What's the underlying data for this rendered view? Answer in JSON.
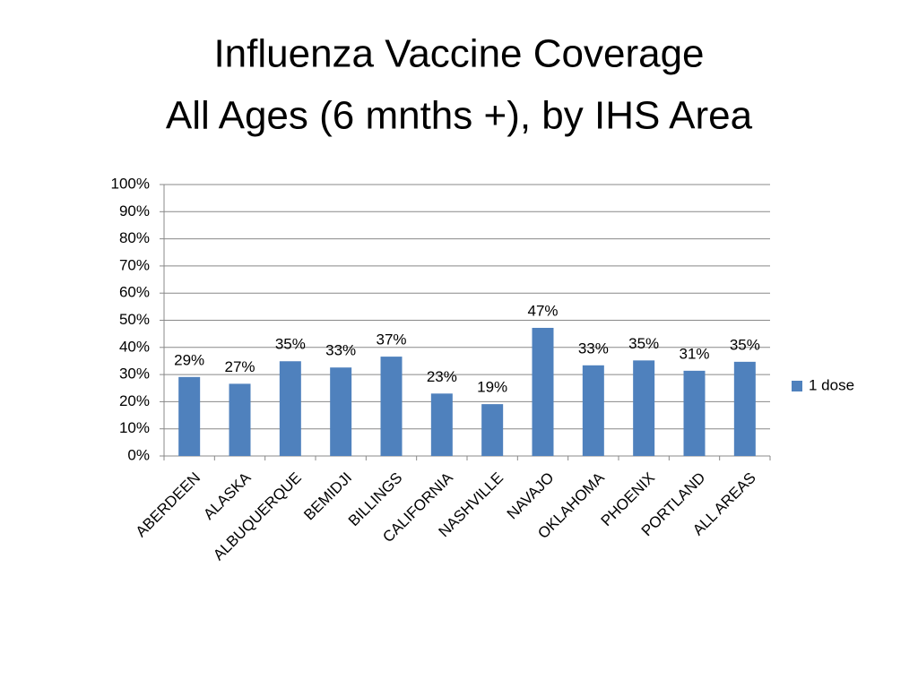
{
  "chart_data": {
    "type": "bar",
    "title": "Influenza Vaccine Coverage",
    "subtitle": "All Ages (6 mnths +), by IHS Area",
    "categories": [
      "ABERDEEN",
      "ALASKA",
      "ALBUQUERQUE",
      "BEMIDJI",
      "BILLINGS",
      "CALIFORNIA",
      "NASHVILLE",
      "NAVAJO",
      "OKLAHOMA",
      "PHOENIX",
      "PORTLAND",
      "ALL AREAS"
    ],
    "series": [
      {
        "name": "1 dose",
        "color": "#4f81bd",
        "values": [
          29.1,
          26.6,
          34.9,
          32.6,
          36.6,
          23.0,
          19.1,
          47.2,
          33.4,
          35.2,
          31.4,
          34.7
        ],
        "value_labels": [
          "29%",
          "27%",
          "35%",
          "33%",
          "37%",
          "23%",
          "19%",
          "47%",
          "33%",
          "35%",
          "31%",
          "35%"
        ]
      }
    ],
    "ylim": [
      0,
      100
    ],
    "yticks": [
      {
        "value": 0,
        "label": "0%"
      },
      {
        "value": 10,
        "label": "10%"
      },
      {
        "value": 20,
        "label": "20%"
      },
      {
        "value": 30,
        "label": "30%"
      },
      {
        "value": 40,
        "label": "40%"
      },
      {
        "value": 50,
        "label": "50%"
      },
      {
        "value": 60,
        "label": "60%"
      },
      {
        "value": 70,
        "label": "70%"
      },
      {
        "value": 80,
        "label": "80%"
      },
      {
        "value": 90,
        "label": "90%"
      },
      {
        "value": 100,
        "label": "100%"
      }
    ],
    "grid": true,
    "legend": "right"
  }
}
